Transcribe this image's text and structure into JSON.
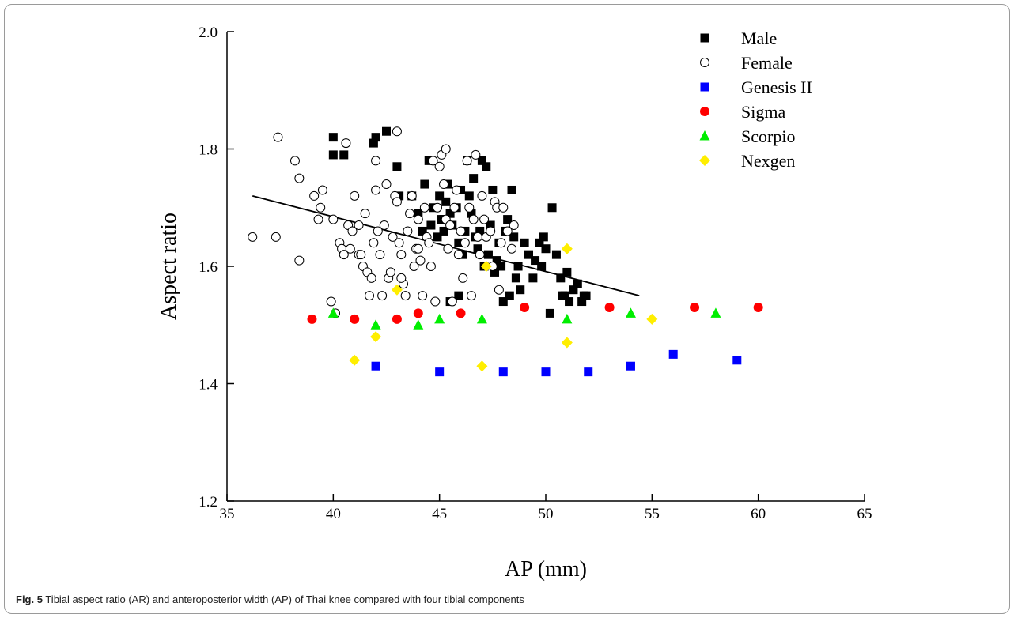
{
  "figure": {
    "caption_label": "Fig. 5",
    "caption_text": "Tibial aspect ratio (AR) and anteroposterior width (AP) of Thai knee compared with four tibial components"
  },
  "chart_data": {
    "type": "scatter",
    "xlabel": "AP (mm)",
    "ylabel": "Aspect ratio",
    "xlim": [
      35,
      65
    ],
    "ylim": [
      1.2,
      2.0
    ],
    "x_ticks": [
      "35",
      "40",
      "45",
      "50",
      "55",
      "60",
      "65"
    ],
    "y_ticks": [
      "1.2",
      "1.4",
      "1.6",
      "1.8",
      "2.0"
    ],
    "grid": false,
    "legend_position": "top-right",
    "trendline": {
      "x": [
        36.2,
        54.4
      ],
      "y": [
        1.72,
        1.55
      ]
    },
    "series": [
      {
        "name": "Male",
        "marker": "square",
        "color": "#000000",
        "filled": true,
        "points": [
          [
            40.0,
            1.82
          ],
          [
            40.0,
            1.79
          ],
          [
            40.5,
            1.79
          ],
          [
            41.9,
            1.81
          ],
          [
            42.0,
            1.82
          ],
          [
            42.5,
            1.83
          ],
          [
            43.0,
            1.77
          ],
          [
            43.1,
            1.72
          ],
          [
            43.7,
            1.72
          ],
          [
            44.0,
            1.69
          ],
          [
            44.2,
            1.66
          ],
          [
            44.3,
            1.74
          ],
          [
            44.5,
            1.78
          ],
          [
            44.6,
            1.67
          ],
          [
            44.7,
            1.7
          ],
          [
            44.9,
            1.65
          ],
          [
            45.0,
            1.72
          ],
          [
            45.1,
            1.68
          ],
          [
            45.2,
            1.66
          ],
          [
            45.3,
            1.71
          ],
          [
            45.4,
            1.74
          ],
          [
            45.5,
            1.69
          ],
          [
            45.6,
            1.67
          ],
          [
            45.8,
            1.7
          ],
          [
            45.9,
            1.64
          ],
          [
            46.0,
            1.73
          ],
          [
            46.1,
            1.62
          ],
          [
            46.2,
            1.66
          ],
          [
            46.3,
            1.78
          ],
          [
            46.4,
            1.72
          ],
          [
            46.5,
            1.69
          ],
          [
            46.6,
            1.75
          ],
          [
            46.7,
            1.65
          ],
          [
            46.8,
            1.63
          ],
          [
            47.0,
            1.78
          ],
          [
            47.1,
            1.6
          ],
          [
            47.2,
            1.77
          ],
          [
            47.3,
            1.62
          ],
          [
            47.4,
            1.67
          ],
          [
            47.5,
            1.73
          ],
          [
            47.6,
            1.59
          ],
          [
            47.7,
            1.61
          ],
          [
            47.8,
            1.64
          ],
          [
            47.9,
            1.6
          ],
          [
            48.0,
            1.54
          ],
          [
            48.1,
            1.66
          ],
          [
            48.2,
            1.68
          ],
          [
            48.3,
            1.55
          ],
          [
            48.4,
            1.73
          ],
          [
            48.5,
            1.65
          ],
          [
            48.6,
            1.58
          ],
          [
            48.7,
            1.6
          ],
          [
            48.8,
            1.56
          ],
          [
            49.0,
            1.64
          ],
          [
            49.2,
            1.62
          ],
          [
            49.4,
            1.58
          ],
          [
            49.5,
            1.61
          ],
          [
            49.7,
            1.64
          ],
          [
            49.8,
            1.6
          ],
          [
            49.9,
            1.65
          ],
          [
            50.0,
            1.63
          ],
          [
            50.2,
            1.52
          ],
          [
            50.3,
            1.7
          ],
          [
            50.5,
            1.62
          ],
          [
            50.7,
            1.58
          ],
          [
            50.8,
            1.55
          ],
          [
            50.9,
            1.55
          ],
          [
            51.0,
            1.59
          ],
          [
            51.1,
            1.54
          ],
          [
            51.3,
            1.56
          ],
          [
            51.5,
            1.57
          ],
          [
            51.7,
            1.54
          ],
          [
            51.8,
            1.55
          ],
          [
            51.9,
            1.55
          ],
          [
            45.9,
            1.55
          ],
          [
            45.5,
            1.54
          ],
          [
            45.2,
            1.68
          ],
          [
            46.9,
            1.66
          ]
        ]
      },
      {
        "name": "Female",
        "marker": "circle",
        "color": "#000000",
        "filled": false,
        "points": [
          [
            36.2,
            1.65
          ],
          [
            37.3,
            1.65
          ],
          [
            37.4,
            1.82
          ],
          [
            38.2,
            1.78
          ],
          [
            38.4,
            1.61
          ],
          [
            38.4,
            1.75
          ],
          [
            39.1,
            1.72
          ],
          [
            39.3,
            1.68
          ],
          [
            39.4,
            1.7
          ],
          [
            39.5,
            1.73
          ],
          [
            39.9,
            1.54
          ],
          [
            40.0,
            1.68
          ],
          [
            40.1,
            1.52
          ],
          [
            40.3,
            1.64
          ],
          [
            40.4,
            1.63
          ],
          [
            40.5,
            1.62
          ],
          [
            40.6,
            1.81
          ],
          [
            40.7,
            1.67
          ],
          [
            40.8,
            1.63
          ],
          [
            41.0,
            1.72
          ],
          [
            41.2,
            1.62
          ],
          [
            41.3,
            1.62
          ],
          [
            41.4,
            1.6
          ],
          [
            41.5,
            1.69
          ],
          [
            41.6,
            1.59
          ],
          [
            41.7,
            1.55
          ],
          [
            41.8,
            1.58
          ],
          [
            41.9,
            1.64
          ],
          [
            42.0,
            1.73
          ],
          [
            42.1,
            1.66
          ],
          [
            42.2,
            1.62
          ],
          [
            42.3,
            1.55
          ],
          [
            42.4,
            1.67
          ],
          [
            42.5,
            1.74
          ],
          [
            42.6,
            1.58
          ],
          [
            42.7,
            1.59
          ],
          [
            42.8,
            1.65
          ],
          [
            42.9,
            1.72
          ],
          [
            43.0,
            1.83
          ],
          [
            43.1,
            1.64
          ],
          [
            43.2,
            1.62
          ],
          [
            43.3,
            1.57
          ],
          [
            43.4,
            1.55
          ],
          [
            43.5,
            1.66
          ],
          [
            43.6,
            1.69
          ],
          [
            43.7,
            1.72
          ],
          [
            43.8,
            1.6
          ],
          [
            43.9,
            1.63
          ],
          [
            44.0,
            1.68
          ],
          [
            44.1,
            1.61
          ],
          [
            44.2,
            1.55
          ],
          [
            44.3,
            1.7
          ],
          [
            44.4,
            1.65
          ],
          [
            44.5,
            1.64
          ],
          [
            44.6,
            1.6
          ],
          [
            44.7,
            1.78
          ],
          [
            44.8,
            1.54
          ],
          [
            44.9,
            1.7
          ],
          [
            45.0,
            1.77
          ],
          [
            45.1,
            1.79
          ],
          [
            45.2,
            1.74
          ],
          [
            45.3,
            1.68
          ],
          [
            45.4,
            1.63
          ],
          [
            45.5,
            1.67
          ],
          [
            45.6,
            1.54
          ],
          [
            45.7,
            1.7
          ],
          [
            45.8,
            1.73
          ],
          [
            45.9,
            1.62
          ],
          [
            46.0,
            1.66
          ],
          [
            46.1,
            1.58
          ],
          [
            46.2,
            1.64
          ],
          [
            46.3,
            1.78
          ],
          [
            46.4,
            1.7
          ],
          [
            46.5,
            1.55
          ],
          [
            46.6,
            1.68
          ],
          [
            46.7,
            1.79
          ],
          [
            46.8,
            1.65
          ],
          [
            46.9,
            1.62
          ],
          [
            47.0,
            1.72
          ],
          [
            47.1,
            1.68
          ],
          [
            47.2,
            1.65
          ],
          [
            47.4,
            1.66
          ],
          [
            47.5,
            1.6
          ],
          [
            47.6,
            1.71
          ],
          [
            47.7,
            1.7
          ],
          [
            47.8,
            1.56
          ],
          [
            47.9,
            1.64
          ],
          [
            48.0,
            1.7
          ],
          [
            48.2,
            1.66
          ],
          [
            48.4,
            1.63
          ],
          [
            48.5,
            1.67
          ],
          [
            43.0,
            1.71
          ],
          [
            42.0,
            1.78
          ],
          [
            41.2,
            1.67
          ],
          [
            44.0,
            1.63
          ],
          [
            43.2,
            1.58
          ],
          [
            40.9,
            1.66
          ],
          [
            45.3,
            1.8
          ]
        ]
      },
      {
        "name": "Genesis II",
        "marker": "square",
        "color": "#0000ff",
        "filled": true,
        "points": [
          [
            42,
            1.43
          ],
          [
            45,
            1.42
          ],
          [
            48,
            1.42
          ],
          [
            50,
            1.42
          ],
          [
            52,
            1.42
          ],
          [
            54,
            1.43
          ],
          [
            56,
            1.45
          ],
          [
            59,
            1.44
          ]
        ]
      },
      {
        "name": "Sigma",
        "marker": "circle",
        "color": "#ff0000",
        "filled": true,
        "points": [
          [
            39,
            1.51
          ],
          [
            41,
            1.51
          ],
          [
            43,
            1.51
          ],
          [
            44,
            1.52
          ],
          [
            46,
            1.52
          ],
          [
            49,
            1.53
          ],
          [
            53,
            1.53
          ],
          [
            57,
            1.53
          ],
          [
            60,
            1.53
          ]
        ]
      },
      {
        "name": "Scorpio",
        "marker": "triangle",
        "color": "#00ee00",
        "filled": true,
        "points": [
          [
            40,
            1.52
          ],
          [
            42,
            1.5
          ],
          [
            44,
            1.5
          ],
          [
            45,
            1.51
          ],
          [
            47,
            1.51
          ],
          [
            51,
            1.51
          ],
          [
            54,
            1.52
          ],
          [
            58,
            1.52
          ]
        ]
      },
      {
        "name": "Nexgen",
        "marker": "diamond",
        "color": "#ffee00",
        "filled": true,
        "points": [
          [
            41,
            1.44
          ],
          [
            42,
            1.48
          ],
          [
            43,
            1.56
          ],
          [
            47,
            1.43
          ],
          [
            47.2,
            1.6
          ],
          [
            51,
            1.47
          ],
          [
            51,
            1.63
          ],
          [
            55,
            1.51
          ]
        ]
      }
    ]
  }
}
